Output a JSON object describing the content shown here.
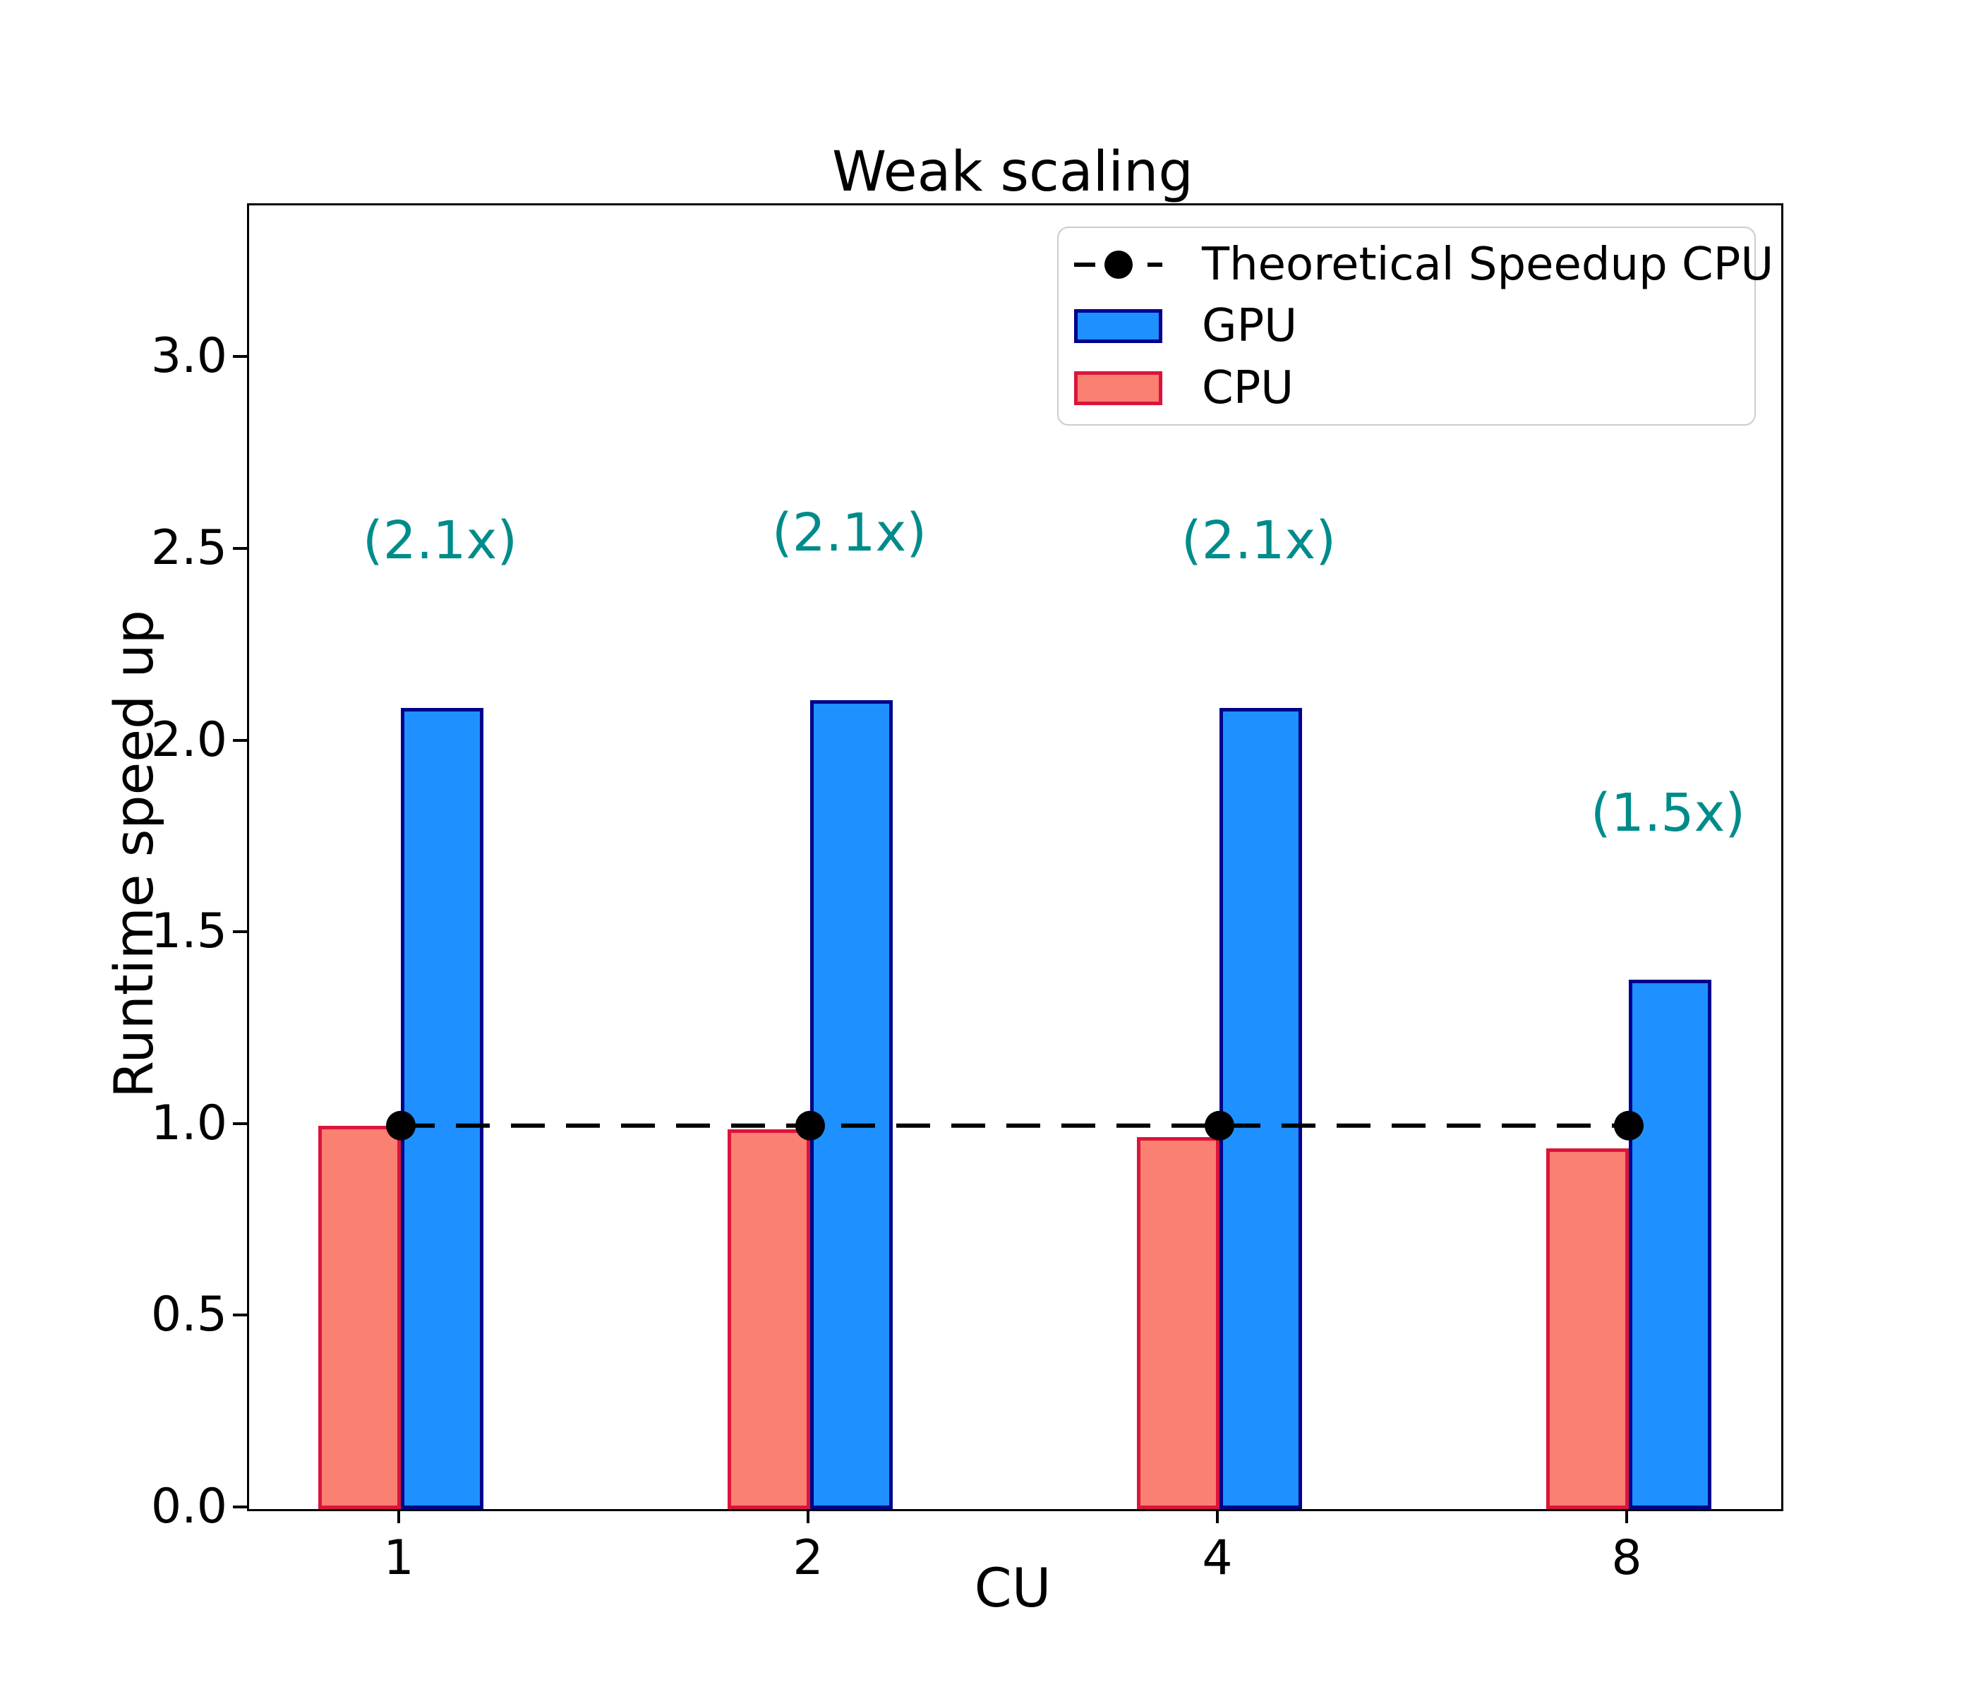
{
  "chart_data": {
    "type": "bar",
    "title": "Weak scaling",
    "xlabel": "CU",
    "ylabel": "Runtime speed up",
    "categories": [
      "1",
      "2",
      "4",
      "8"
    ],
    "series": [
      {
        "name": "CPU",
        "values": [
          1.0,
          0.99,
          0.97,
          0.94
        ],
        "fill": "#FA8072",
        "edge": "#DC143C"
      },
      {
        "name": "GPU",
        "values": [
          2.09,
          2.11,
          2.09,
          1.38
        ],
        "fill": "#1E90FF",
        "edge": "#00008B"
      }
    ],
    "theoretical_line": {
      "label": "Theoretical Speedup CPU",
      "y": 1.0,
      "color": "#000000",
      "style": "dashed",
      "marker": "circle"
    },
    "annotations": [
      {
        "label": "(2.1x)",
        "category": "1"
      },
      {
        "label": "(2.1x)",
        "category": "2"
      },
      {
        "label": "(2.1x)",
        "category": "4"
      },
      {
        "label": "(1.5x)",
        "category": "8"
      }
    ],
    "annotation_color": "#008B8B",
    "yticks": [
      "0.0",
      "0.5",
      "1.0",
      "1.5",
      "2.0",
      "2.5",
      "3.0"
    ],
    "ytick_values": [
      0.0,
      0.5,
      1.0,
      1.5,
      2.0,
      2.5,
      3.0
    ],
    "ylim": [
      0,
      3.4
    ],
    "legend": [
      "Theoretical Speedup CPU",
      "GPU",
      "CPU"
    ],
    "legend_position": "upper right",
    "grid": false
  }
}
